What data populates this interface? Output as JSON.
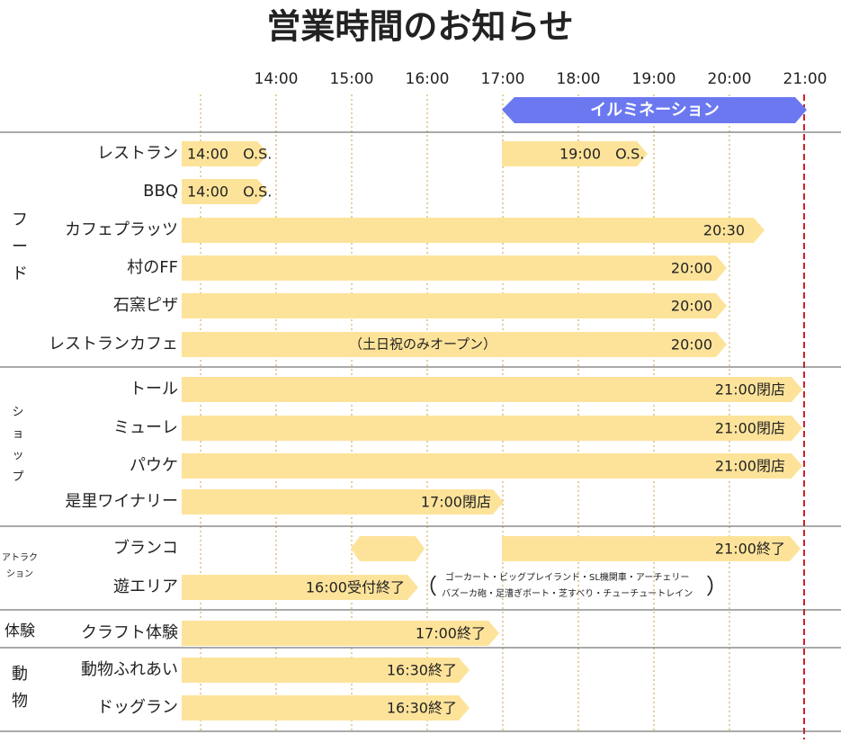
{
  "title": "営業時間のお知らせ",
  "times": [
    "14:00",
    "15:00",
    "16:00",
    "17:00",
    "18:00",
    "19:00",
    "20:00",
    "21:00"
  ],
  "illumination": "イルミネーション",
  "groups": [
    {
      "label": "フード",
      "rows": [
        {
          "name": "レストラン",
          "bars": [
            {
              "text": "14:00　O.S."
            },
            {
              "text": "19:00　O.S."
            }
          ]
        },
        {
          "name": "BBQ",
          "bars": [
            {
              "text": "14:00　O.S."
            }
          ]
        },
        {
          "name": "カフェプラッツ",
          "bars": [
            {
              "text": "20:30"
            }
          ]
        },
        {
          "name": "村のFF",
          "bars": [
            {
              "text": "20:00"
            }
          ]
        },
        {
          "name": "石窯ピザ",
          "bars": [
            {
              "text": "20:00"
            }
          ]
        },
        {
          "name": "レストランカフェ",
          "bars": [
            {
              "text": "20:00",
              "note": "（土日祝のみオープン）"
            }
          ]
        }
      ]
    },
    {
      "label": "ショップ",
      "rows": [
        {
          "name": "トール",
          "bars": [
            {
              "text": "21:00閉店"
            }
          ]
        },
        {
          "name": "ミューレ",
          "bars": [
            {
              "text": "21:00閉店"
            }
          ]
        },
        {
          "name": "パウケ",
          "bars": [
            {
              "text": "21:00閉店"
            }
          ]
        },
        {
          "name": "是里ワイナリー",
          "bars": [
            {
              "text": "17:00閉店"
            }
          ]
        }
      ]
    },
    {
      "label": [
        "アトラク",
        "ション"
      ],
      "rows": [
        {
          "name": "ブランコ",
          "bars": [
            {},
            {
              "text": "21:00終了"
            }
          ]
        },
        {
          "name": "遊エリア",
          "bars": [
            {
              "text": "16:00受付終了"
            }
          ],
          "note": {
            "open": "（",
            "lines": [
              "ゴーカート・ビッグプレイランド・SL機関車・アーチェリー",
              "バズーカ砲・足漕ぎボート・芝すべり・チューチュートレイン"
            ],
            "close": "）"
          }
        }
      ]
    },
    {
      "label": "体験",
      "rows": [
        {
          "name": "クラフト体験",
          "bars": [
            {
              "text": "17:00終了"
            }
          ]
        }
      ]
    },
    {
      "label": "動物",
      "rows": [
        {
          "name": "動物ふれあい",
          "bars": [
            {
              "text": "16:30終了"
            }
          ]
        },
        {
          "name": "ドッグラン",
          "bars": [
            {
              "text": "16:30終了"
            }
          ]
        }
      ]
    }
  ]
}
